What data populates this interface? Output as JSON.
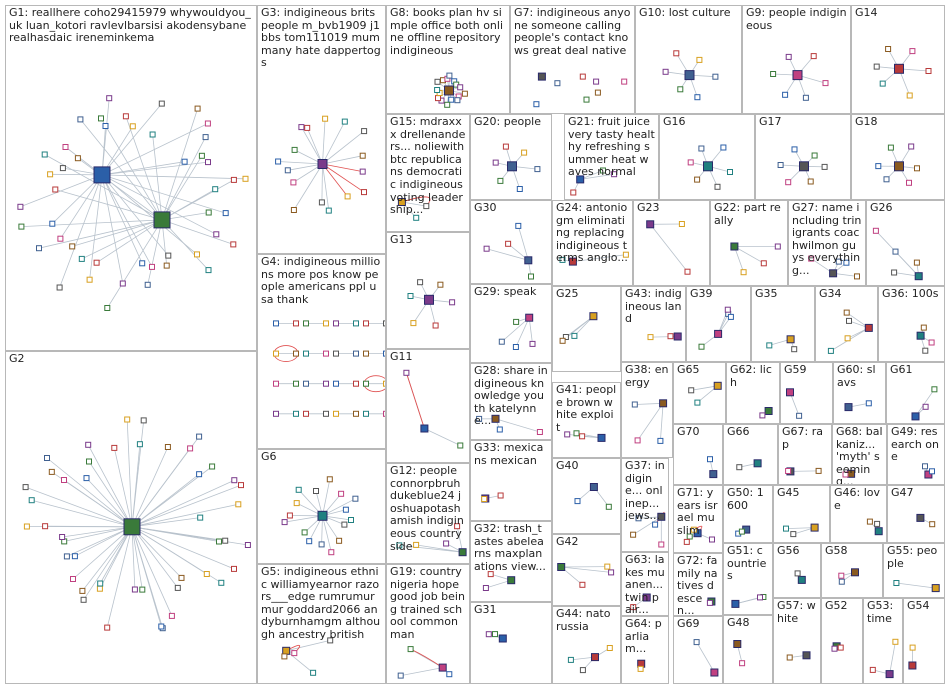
{
  "groups": [
    {
      "id": "G1",
      "text": "G1: reallhere coho29415979 whywouldyou_uk luan_kotori ravlevlbarsisi akodensybane realhasdaic ireneminkema",
      "style": "hub2"
    },
    {
      "id": "G2",
      "text": "G2",
      "style": "hub1"
    },
    {
      "id": "G3",
      "text": "G3: indigineous brits people m_bvb1909 j1bbs tom111019 mum many hate dappertogs",
      "style": "hub1b"
    },
    {
      "id": "G4",
      "text": "G4: indigineous millions more pos know people americans ppl usa thank",
      "style": "pairs"
    },
    {
      "id": "G5",
      "text": "G5: indigineous ethnic williamyearnor razors___edge rumrumurmur goddard2066 andyburnhamgm although ancestry british",
      "style": "red"
    },
    {
      "id": "G6",
      "text": "G6",
      "style": "hub1"
    },
    {
      "id": "G7",
      "text": "G7: indigineous anyone someone calling people's contact knows great deal native",
      "style": "scatter"
    },
    {
      "id": "G8",
      "text": "G8: books plan hv simple office both online offline repository indigineous",
      "style": "hub1"
    },
    {
      "id": "G9",
      "text": "G9: people indigineous",
      "style": "hub1"
    },
    {
      "id": "G10",
      "text": "G10: lost culture",
      "style": "hub1"
    },
    {
      "id": "G11",
      "text": "G11",
      "style": "red"
    },
    {
      "id": "G12",
      "text": "G12: people connorpbruh dukeblue24 joshuapotash amish indigineous country side",
      "style": "small"
    },
    {
      "id": "G13",
      "text": "G13",
      "style": "hub1"
    },
    {
      "id": "G14",
      "text": "G14",
      "style": "hub1"
    },
    {
      "id": "G15",
      "text": "G15: mdraxxx drellenanders... noliewithbtc republicans democratic indigineous voting leadership...",
      "style": "red"
    },
    {
      "id": "G16",
      "text": "G16",
      "style": "hub1"
    },
    {
      "id": "G17",
      "text": "G17",
      "style": "hub1"
    },
    {
      "id": "G18",
      "text": "G18",
      "style": "hub1"
    },
    {
      "id": "G19",
      "text": "G19: country nigeria hope good job being trained school common man",
      "style": "red"
    },
    {
      "id": "G20",
      "text": "G20: people",
      "style": "hub1"
    },
    {
      "id": "G21",
      "text": "G21: fruit juice very tasty healthy refreshing summer heat waves normal",
      "style": "small"
    },
    {
      "id": "G22",
      "text": "G22: part really",
      "style": "small"
    },
    {
      "id": "G23",
      "text": "G23",
      "style": "small"
    },
    {
      "id": "G24",
      "text": "G24: antoniogm eliminating replacing indigineous terms anglo...",
      "style": "small"
    },
    {
      "id": "G25",
      "text": "G25",
      "style": "small"
    },
    {
      "id": "G26",
      "text": "G26",
      "style": "small"
    },
    {
      "id": "G27",
      "text": "G27: name including trinigrants coachwilmon guys everything...",
      "style": "small"
    },
    {
      "id": "G28",
      "text": "G28: share indigineous knowledge youth katelynne...",
      "style": "small"
    },
    {
      "id": "G29",
      "text": "G29: speak",
      "style": "small"
    },
    {
      "id": "G30",
      "text": "G30",
      "style": "small"
    },
    {
      "id": "G31",
      "text": "G31",
      "style": "small"
    },
    {
      "id": "G32",
      "text": "G32: trash_tastes abelearns maxplanations view...",
      "style": "small"
    },
    {
      "id": "G33",
      "text": "G33: mexicans mexican",
      "style": "small"
    },
    {
      "id": "G34",
      "text": "G34",
      "style": "small"
    },
    {
      "id": "G35",
      "text": "G35",
      "style": "small"
    },
    {
      "id": "G36",
      "text": "G36: 100s",
      "style": "small"
    },
    {
      "id": "G37",
      "text": "G37: indigine... onlinep... jews...",
      "style": "red"
    },
    {
      "id": "G38",
      "text": "G38: energy",
      "style": "small"
    },
    {
      "id": "G39",
      "text": "G39",
      "style": "small"
    },
    {
      "id": "G40",
      "text": "G40",
      "style": "small"
    },
    {
      "id": "G41",
      "text": "G41: people brown white exploit",
      "style": "small"
    },
    {
      "id": "G42",
      "text": "G42",
      "style": "small"
    },
    {
      "id": "G43",
      "text": "G43: indigineous land",
      "style": "small"
    },
    {
      "id": "G44",
      "text": "G44: nato russia",
      "style": "small"
    },
    {
      "id": "G45",
      "text": "G45",
      "style": "tiny"
    },
    {
      "id": "G46",
      "text": "G46: love",
      "style": "tiny"
    },
    {
      "id": "G47",
      "text": "G47",
      "style": "tiny"
    },
    {
      "id": "G48",
      "text": "G48",
      "style": "tiny"
    },
    {
      "id": "G49",
      "text": "G49: research one",
      "style": "tiny"
    },
    {
      "id": "G50",
      "text": "G50: 1600",
      "style": "tiny"
    },
    {
      "id": "G51",
      "text": "G51: countries",
      "style": "tiny"
    },
    {
      "id": "G52",
      "text": "G52",
      "style": "tiny"
    },
    {
      "id": "G53",
      "text": "G53: time",
      "style": "tiny"
    },
    {
      "id": "G54",
      "text": "G54",
      "style": "tiny"
    },
    {
      "id": "G55",
      "text": "G55: people",
      "style": "tiny"
    },
    {
      "id": "G56",
      "text": "G56",
      "style": "tiny"
    },
    {
      "id": "G57",
      "text": "G57: white",
      "style": "tiny"
    },
    {
      "id": "G58",
      "text": "G58",
      "style": "tiny"
    },
    {
      "id": "G59",
      "text": "G59",
      "style": "tiny"
    },
    {
      "id": "G60",
      "text": "G60: slavs",
      "style": "tiny"
    },
    {
      "id": "G61",
      "text": "G61",
      "style": "tiny"
    },
    {
      "id": "G62",
      "text": "G62: lich",
      "style": "tiny"
    },
    {
      "id": "G63",
      "text": "G63: lakes muanen... twin pair...",
      "style": "tiny"
    },
    {
      "id": "G64",
      "text": "G64: parliam...",
      "style": "tiny"
    },
    {
      "id": "G65",
      "text": "G65",
      "style": "tiny"
    },
    {
      "id": "G66",
      "text": "G66",
      "style": "tiny"
    },
    {
      "id": "G67",
      "text": "G67: rap",
      "style": "tiny"
    },
    {
      "id": "G68",
      "text": "G68: balkaniz... 'myth' seeming...",
      "style": "tiny"
    },
    {
      "id": "G69",
      "text": "G69",
      "style": "tiny"
    },
    {
      "id": "G70",
      "text": "G70",
      "style": "tiny"
    },
    {
      "id": "G71",
      "text": "G71: years israel muslim",
      "style": "red"
    },
    {
      "id": "G72",
      "text": "G72: family natives descen...",
      "style": "tiny"
    }
  ],
  "colors": {
    "border": "#b8b8b8",
    "edge": "#b8c2cc",
    "edge_red": "#e05050",
    "node_fill": "#ffffff",
    "node_stroke": "#2a2a6a",
    "palette": [
      "#2b5fa8",
      "#3a7a3a",
      "#7a3a8a",
      "#b83a3a",
      "#d8a020",
      "#208080",
      "#555555",
      "#8a5a20",
      "#c04080",
      "#406090"
    ]
  }
}
